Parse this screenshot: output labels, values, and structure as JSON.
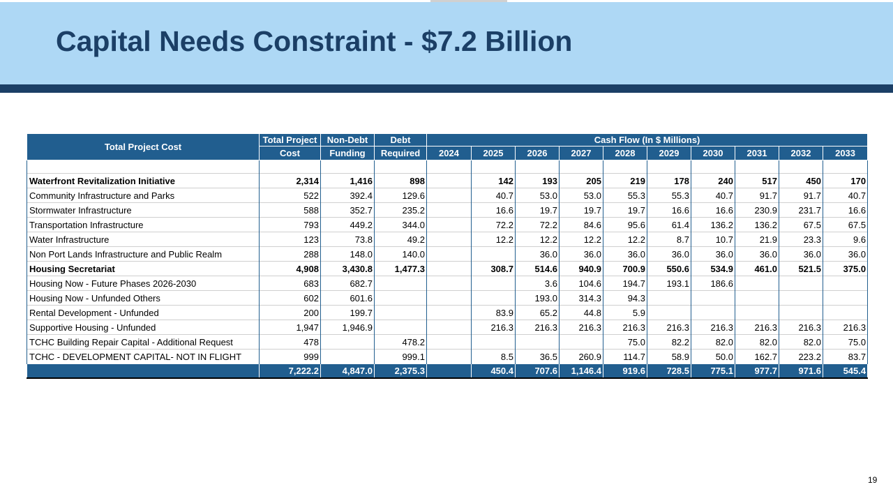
{
  "slide": {
    "title": "Capital Needs Constraint - $7.2 Billion",
    "page_number": "19"
  },
  "table": {
    "headers": {
      "name": "Total Project Cost",
      "total_project_cost": [
        "Total Project",
        "Cost"
      ],
      "non_debt_funding": [
        "Non-Debt",
        "Funding"
      ],
      "debt_required": [
        "Debt",
        "Required"
      ],
      "cash_flow": "Cash Flow (In $ Millions)",
      "years": [
        "2024",
        "2025",
        "2026",
        "2027",
        "2028",
        "2029",
        "2030",
        "2031",
        "2032",
        "2033"
      ]
    },
    "rows": [
      {
        "name": "Waterfront Revitalization Initiative",
        "bold": true,
        "total": "2,314",
        "nondebt": "1,416",
        "debt": "898",
        "cf": [
          "",
          "142",
          "193",
          "205",
          "219",
          "178",
          "240",
          "517",
          "450",
          "170"
        ]
      },
      {
        "name": "Community Infrastructure and Parks",
        "bold": false,
        "total": "522",
        "nondebt": "392.4",
        "debt": "129.6",
        "cf": [
          "",
          "40.7",
          "53.0",
          "53.0",
          "55.3",
          "55.3",
          "40.7",
          "91.7",
          "91.7",
          "40.7"
        ]
      },
      {
        "name": "Stormwater Infrastructure",
        "bold": false,
        "total": "588",
        "nondebt": "352.7",
        "debt": "235.2",
        "cf": [
          "",
          "16.6",
          "19.7",
          "19.7",
          "19.7",
          "16.6",
          "16.6",
          "230.9",
          "231.7",
          "16.6"
        ]
      },
      {
        "name": "Transportation Infrastructure",
        "bold": false,
        "total": "793",
        "nondebt": "449.2",
        "debt": "344.0",
        "cf": [
          "",
          "72.2",
          "72.2",
          "84.6",
          "95.6",
          "61.4",
          "136.2",
          "136.2",
          "67.5",
          "67.5"
        ]
      },
      {
        "name": "Water Infrastructure",
        "bold": false,
        "total": "123",
        "nondebt": "73.8",
        "debt": "49.2",
        "cf": [
          "",
          "12.2",
          "12.2",
          "12.2",
          "12.2",
          "8.7",
          "10.7",
          "21.9",
          "23.3",
          "9.6"
        ]
      },
      {
        "name": "Non Port Lands Infrastructure and Public Realm",
        "bold": false,
        "total": "288",
        "nondebt": "148.0",
        "debt": "140.0",
        "cf": [
          "",
          "",
          "36.0",
          "36.0",
          "36.0",
          "36.0",
          "36.0",
          "36.0",
          "36.0",
          "36.0"
        ]
      },
      {
        "name": "Housing Secretariat",
        "bold": true,
        "total": "4,908",
        "nondebt": "3,430.8",
        "debt": "1,477.3",
        "cf": [
          "",
          "308.7",
          "514.6",
          "940.9",
          "700.9",
          "550.6",
          "534.9",
          "461.0",
          "521.5",
          "375.0"
        ]
      },
      {
        "name": "Housing Now - Future Phases 2026-2030",
        "bold": false,
        "total": "683",
        "nondebt": "682.7",
        "debt": "",
        "cf": [
          "",
          "",
          "3.6",
          "104.6",
          "194.7",
          "193.1",
          "186.6",
          "",
          "",
          ""
        ]
      },
      {
        "name": "Housing Now - Unfunded Others",
        "bold": false,
        "total": "602",
        "nondebt": "601.6",
        "debt": "",
        "cf": [
          "",
          "",
          "193.0",
          "314.3",
          "94.3",
          "",
          "",
          "",
          "",
          ""
        ]
      },
      {
        "name": "Rental Development - Unfunded",
        "bold": false,
        "total": "200",
        "nondebt": "199.7",
        "debt": "",
        "cf": [
          "",
          "83.9",
          "65.2",
          "44.8",
          "5.9",
          "",
          "",
          "",
          "",
          ""
        ]
      },
      {
        "name": "Supportive Housing - Unfunded",
        "bold": false,
        "total": "1,947",
        "nondebt": "1,946.9",
        "debt": "",
        "cf": [
          "",
          "216.3",
          "216.3",
          "216.3",
          "216.3",
          "216.3",
          "216.3",
          "216.3",
          "216.3",
          "216.3"
        ]
      },
      {
        "name": "TCHC Building Repair Capital - Additional Request",
        "bold": false,
        "total": "478",
        "nondebt": "",
        "debt": "478.2",
        "cf": [
          "",
          "",
          "",
          "",
          "75.0",
          "82.2",
          "82.0",
          "82.0",
          "82.0",
          "75.0"
        ]
      },
      {
        "name": "TCHC - DEVELOPMENT CAPITAL- NOT IN FLIGHT",
        "bold": false,
        "total": "999",
        "nondebt": "",
        "debt": "999.1",
        "cf": [
          "",
          "8.5",
          "36.5",
          "260.9",
          "114.7",
          "58.9",
          "50.0",
          "162.7",
          "223.2",
          "83.7"
        ]
      }
    ],
    "totals": {
      "name": "",
      "total": "7,222.2",
      "nondebt": "4,847.0",
      "debt": "2,375.3",
      "cf": [
        "",
        "450.4",
        "707.6",
        "1,146.4",
        "919.6",
        "728.5",
        "775.1",
        "977.7",
        "971.6",
        "545.4"
      ]
    }
  }
}
